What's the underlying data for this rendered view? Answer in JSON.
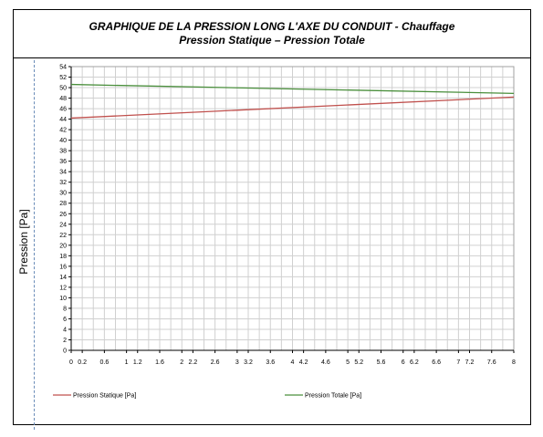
{
  "title": {
    "line1": "GRAPHIQUE DE LA PRESSION  LONG L'AXE DU CONDUIT - Chauffage",
    "line2": "Pression Statique – Pression Totale"
  },
  "chart_data": {
    "type": "line",
    "ylabel": "Pression [Pa]",
    "xlabel": "",
    "xlim": [
      0,
      8
    ],
    "ylim": [
      0,
      54
    ],
    "grid": true,
    "legend_placement": "bottom",
    "x_tick_labels": [
      "0",
      "0.2",
      "0.6",
      "1",
      "1.2",
      "1.6",
      "2",
      "2.2",
      "2.6",
      "3",
      "3.2",
      "3.6",
      "4",
      "4.2",
      "4.6",
      "5",
      "5.2",
      "5.6",
      "6",
      "6.2",
      "6.6",
      "7",
      "7.2",
      "7.6",
      "8"
    ],
    "y_tick_labels": [
      "0",
      "2",
      "4",
      "6",
      "8",
      "10",
      "12",
      "14",
      "16",
      "18",
      "20",
      "22",
      "24",
      "26",
      "28",
      "30",
      "32",
      "34",
      "36",
      "38",
      "40",
      "42",
      "44",
      "46",
      "48",
      "50",
      "52",
      "54"
    ],
    "series": [
      {
        "name": "Pression Statique [Pa]",
        "color": "#c0504d",
        "x": [
          0,
          8
        ],
        "y": [
          44.2,
          48.2
        ]
      },
      {
        "name": "Pression Totale [Pa]",
        "color": "#4a8f3c",
        "x": [
          0,
          8
        ],
        "y": [
          50.6,
          48.9
        ]
      }
    ]
  }
}
